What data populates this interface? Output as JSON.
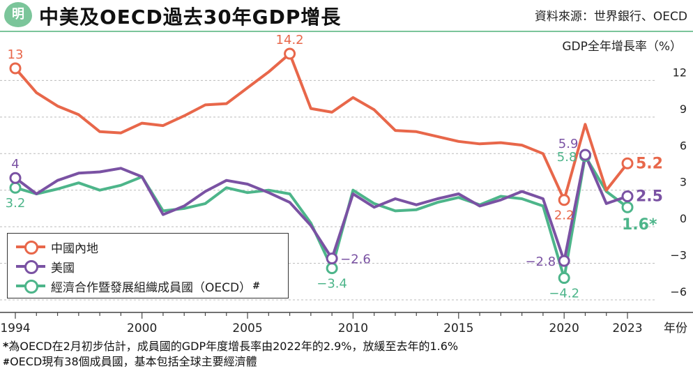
{
  "header": {
    "logo_text": "明",
    "title": "中美及OECD過去30年GDP增長",
    "source": "資料來源：世界銀行、OECD"
  },
  "chart_data": {
    "type": "line",
    "ylabel": "GDP全年增長率（%）",
    "xlabel": "年份",
    "ylim": [
      -6.8,
      15.4
    ],
    "xlim": [
      1994,
      2023
    ],
    "yticks": [
      12,
      9,
      6,
      3,
      0,
      -3,
      -6
    ],
    "ytick_labels": [
      "12",
      "9",
      "6",
      "3",
      "0",
      "−3",
      "−6"
    ],
    "xticks": [
      1994,
      2000,
      2005,
      2010,
      2015,
      2020,
      2023
    ],
    "xtick_labels": [
      "1994",
      "2000",
      "2005",
      "2010",
      "2015",
      "2020",
      "2023"
    ],
    "x": [
      1994,
      1995,
      1996,
      1997,
      1998,
      1999,
      2000,
      2001,
      2002,
      2003,
      2004,
      2005,
      2006,
      2007,
      2008,
      2009,
      2010,
      2011,
      2012,
      2013,
      2014,
      2015,
      2016,
      2017,
      2018,
      2019,
      2020,
      2021,
      2022,
      2023
    ],
    "series": [
      {
        "name": "中國內地",
        "color": "#e8674a",
        "values": [
          13.0,
          11.0,
          9.9,
          9.2,
          7.8,
          7.7,
          8.5,
          8.3,
          9.1,
          10.0,
          10.1,
          11.4,
          12.7,
          14.2,
          9.7,
          9.4,
          10.6,
          9.6,
          7.9,
          7.8,
          7.4,
          7.0,
          6.8,
          6.9,
          6.7,
          6.0,
          2.2,
          8.4,
          3.0,
          5.2
        ]
      },
      {
        "name": "美國",
        "color": "#7a52a3",
        "values": [
          4.0,
          2.7,
          3.8,
          4.4,
          4.5,
          4.8,
          4.1,
          1.0,
          1.7,
          2.9,
          3.8,
          3.5,
          2.8,
          2.0,
          0.1,
          -2.6,
          2.7,
          1.6,
          2.3,
          1.8,
          2.3,
          2.7,
          1.7,
          2.2,
          2.9,
          2.3,
          -2.8,
          5.9,
          1.9,
          2.5
        ]
      },
      {
        "name": "經濟合作暨發展組織成員國（OECD）",
        "color": "#4db58a",
        "values": [
          3.2,
          2.7,
          3.1,
          3.6,
          3.0,
          3.4,
          4.1,
          1.3,
          1.5,
          1.9,
          3.2,
          2.8,
          3.0,
          2.7,
          0.3,
          -3.4,
          3.0,
          1.9,
          1.3,
          1.4,
          2.0,
          2.4,
          1.8,
          2.5,
          2.3,
          1.7,
          -4.2,
          5.8,
          2.9,
          1.6
        ]
      }
    ],
    "annotations": [
      {
        "series": 0,
        "year": 1994,
        "text": "13",
        "pos": "above"
      },
      {
        "series": 0,
        "year": 2007,
        "text": "14.2",
        "pos": "above"
      },
      {
        "series": 0,
        "year": 2020,
        "text": "2.2",
        "pos": "below"
      },
      {
        "series": 0,
        "year": 2023,
        "text": "5.2",
        "pos": "right",
        "bold": true
      },
      {
        "series": 1,
        "year": 1994,
        "text": "4",
        "pos": "above"
      },
      {
        "series": 1,
        "year": 2009,
        "text": "−2.6",
        "pos": "right"
      },
      {
        "series": 1,
        "year": 2020,
        "text": "−2.8",
        "pos": "left"
      },
      {
        "series": 1,
        "year": 2021,
        "text": "5.9",
        "pos": "upleft"
      },
      {
        "series": 1,
        "year": 2023,
        "text": "2.5",
        "pos": "right",
        "bold": true
      },
      {
        "series": 2,
        "year": 1994,
        "text": "3.2",
        "pos": "below"
      },
      {
        "series": 2,
        "year": 2009,
        "text": "−3.4",
        "pos": "below"
      },
      {
        "series": 2,
        "year": 2020,
        "text": "−4.2",
        "pos": "below"
      },
      {
        "series": 2,
        "year": 2021,
        "text": "5.8",
        "pos": "left"
      },
      {
        "series": 2,
        "year": 2023,
        "text": "1.6*",
        "pos": "belowright",
        "bold": true
      }
    ],
    "legend": "bottom-left",
    "grid": "horizontal-dashed",
    "markers": [
      1994,
      2007,
      2009,
      2020,
      2021,
      2023
    ]
  },
  "legend": {
    "items": [
      {
        "label": "中國內地",
        "color": "#e8674a"
      },
      {
        "label": "美國",
        "color": "#7a52a3"
      },
      {
        "label": "經濟合作暨發展組織成員國（OECD）",
        "color": "#4db58a",
        "mark": "#"
      }
    ]
  },
  "notes": {
    "note1_mark": "*",
    "note1": "為OECD在2月初步估計，成員國的GDP年度增長率由2022年的2.9%，放緩至去年的1.6%",
    "note2_mark": "#",
    "note2": "OECD現有38個成員國，基本包括全球主要經濟體"
  }
}
